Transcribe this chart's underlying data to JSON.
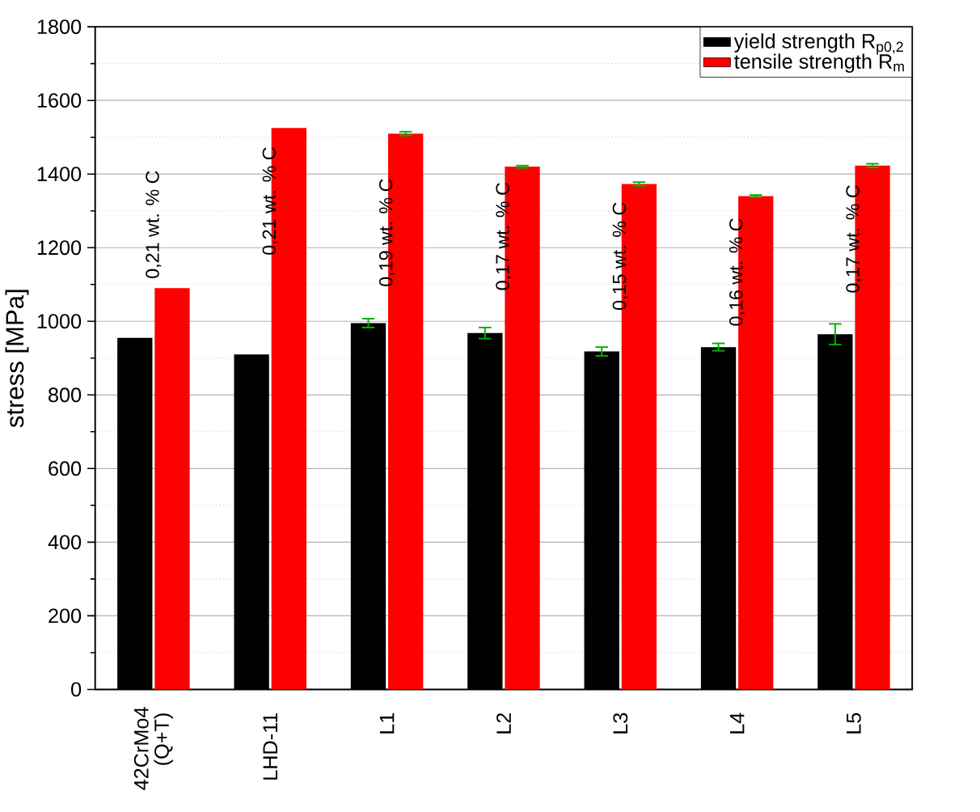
{
  "chart_data": {
    "type": "bar",
    "ylabel": "stress [MPa]",
    "categories": [
      "42CrMo4 (Q+T)",
      "LHD-11",
      "L1",
      "L2",
      "L3",
      "L4",
      "L5"
    ],
    "series": [
      {
        "name": "yield strength R$_{p0,2}$",
        "color": "#000000",
        "values": [
          955,
          910,
          995,
          968,
          918,
          930,
          965
        ],
        "errors": [
          null,
          null,
          12,
          15,
          12,
          10,
          28
        ]
      },
      {
        "name": "tensile strength R$_{m}$",
        "color": "#ff0000",
        "values": [
          1090,
          1525,
          1510,
          1420,
          1373,
          1340,
          1423
        ],
        "errors": [
          null,
          null,
          5,
          3,
          5,
          3,
          5
        ]
      }
    ],
    "ylim": [
      0,
      1800
    ],
    "yticks": [
      0,
      {
        "value": 100,
        "label": null
      },
      200,
      {
        "value": 300,
        "label": null
      },
      400,
      {
        "value": 500,
        "label": null
      },
      600,
      {
        "value": 700,
        "label": null
      },
      800,
      {
        "value": 900,
        "label": null
      },
      1000,
      {
        "value": 1100,
        "label": null
      },
      1200,
      {
        "value": 1300,
        "label": null
      },
      1400,
      {
        "value": 1500,
        "label": null
      },
      1600,
      {
        "value": 1700,
        "label": null
      },
      1800
    ],
    "grid": true,
    "legend": "top right",
    "annotations": [
      {
        "text": "0,21 wt. % C",
        "x": "42CrMo4 (Q+T)",
        "y": 1110
      },
      {
        "text": "0,21 wt. % C",
        "x": "LHD-11",
        "y": 1174
      },
      {
        "text": "0,19 wt. % C",
        "x": "L1",
        "y": 1088
      },
      {
        "text": "0,17 wt. % C",
        "x": "L2",
        "y": 1078
      },
      {
        "text": "0,15 wt. % C",
        "x": "L3",
        "y": 1024
      },
      {
        "text": "0,16 wt. % C",
        "x": "L4",
        "y": 981
      },
      {
        "text": "0,17 wt. % C",
        "x": "L5",
        "y": 1071
      }
    ]
  }
}
